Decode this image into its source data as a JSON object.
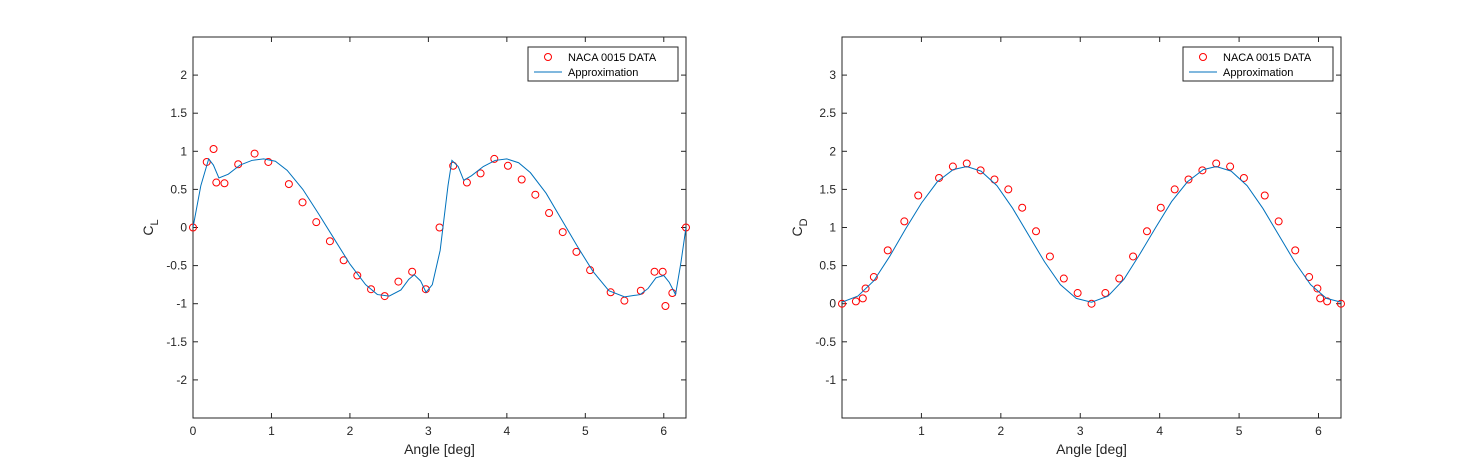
{
  "chart_data": [
    {
      "type": "line",
      "xlabel": "Angle [deg]",
      "ylabel": "C",
      "ylabel_sub": "L",
      "xlim": [
        0,
        6.2832
      ],
      "ylim": [
        -2.5,
        2.5
      ],
      "xticks": [
        0,
        1,
        2,
        3,
        4,
        5,
        6
      ],
      "yticks": [
        -2,
        -1.5,
        -1,
        -0.5,
        0,
        0.5,
        1,
        1.5,
        2
      ],
      "ytick_labels": [
        "-2",
        "-1.5",
        "-1",
        "-0.5",
        "0",
        "0.5",
        "1",
        "1.5",
        "2"
      ],
      "legend_position": "top-right",
      "series": [
        {
          "name": "NACA 0015 DATA",
          "kind": "markers",
          "color": "#ff0000",
          "x": [
            0.0,
            0.175,
            0.262,
            0.297,
            0.401,
            0.576,
            0.785,
            0.96,
            1.222,
            1.396,
            1.571,
            1.745,
            1.92,
            2.094,
            2.269,
            2.443,
            2.618,
            2.793,
            2.967,
            3.142,
            3.316,
            3.491,
            3.665,
            3.84,
            4.014,
            4.189,
            4.363,
            4.538,
            4.712,
            4.887,
            5.061,
            5.323,
            5.498,
            5.707,
            5.882,
            5.986,
            6.021,
            6.109,
            6.283
          ],
          "y": [
            0.0,
            0.86,
            1.03,
            0.59,
            0.58,
            0.83,
            0.97,
            0.86,
            0.57,
            0.33,
            0.07,
            -0.18,
            -0.43,
            -0.63,
            -0.81,
            -0.9,
            -0.71,
            -0.58,
            -0.81,
            0.0,
            0.81,
            0.59,
            0.71,
            0.9,
            0.81,
            0.63,
            0.43,
            0.19,
            -0.06,
            -0.32,
            -0.56,
            -0.85,
            -0.96,
            -0.83,
            -0.58,
            -0.58,
            -1.03,
            -0.86,
            0.0
          ]
        },
        {
          "name": "Approximation",
          "kind": "line",
          "color": "#0072bd",
          "x": [
            0.0,
            0.1,
            0.2,
            0.26,
            0.33,
            0.45,
            0.6,
            0.75,
            0.9,
            1.05,
            1.2,
            1.4,
            1.6,
            1.8,
            2.0,
            2.2,
            2.35,
            2.5,
            2.65,
            2.75,
            2.82,
            2.9,
            2.97,
            3.05,
            3.15,
            3.25,
            3.3,
            3.38,
            3.45,
            3.55,
            3.7,
            3.85,
            4.0,
            4.15,
            4.3,
            4.5,
            4.7,
            4.9,
            5.1,
            5.3,
            5.5,
            5.7,
            5.8,
            5.9,
            6.0,
            6.07,
            6.15,
            6.22,
            6.283
          ],
          "y": [
            0.0,
            0.55,
            0.9,
            0.82,
            0.65,
            0.7,
            0.82,
            0.88,
            0.9,
            0.87,
            0.75,
            0.5,
            0.18,
            -0.15,
            -0.48,
            -0.75,
            -0.88,
            -0.9,
            -0.82,
            -0.68,
            -0.62,
            -0.7,
            -0.85,
            -0.75,
            -0.3,
            0.55,
            0.88,
            0.8,
            0.62,
            0.68,
            0.8,
            0.88,
            0.9,
            0.85,
            0.72,
            0.45,
            0.1,
            -0.25,
            -0.58,
            -0.83,
            -0.91,
            -0.88,
            -0.8,
            -0.66,
            -0.63,
            -0.72,
            -0.88,
            -0.45,
            0.0
          ]
        }
      ]
    },
    {
      "type": "line",
      "xlabel": "Angle [deg]",
      "ylabel": "C",
      "ylabel_sub": "D",
      "xlim": [
        0,
        6.2832
      ],
      "ylim": [
        -1.5,
        3.5
      ],
      "xticks": [
        1,
        2,
        3,
        4,
        5,
        6
      ],
      "yticks": [
        -1,
        -0.5,
        0,
        0.5,
        1,
        1.5,
        2,
        2.5,
        3
      ],
      "ytick_labels": [
        "-1",
        "-0.5",
        "0",
        "0.5",
        "1",
        "1.5",
        "2",
        "2.5",
        "3"
      ],
      "legend_position": "top-right",
      "series": [
        {
          "name": "NACA 0015 DATA",
          "kind": "markers",
          "color": "#ff0000",
          "x": [
            0.0,
            0.175,
            0.262,
            0.297,
            0.401,
            0.576,
            0.785,
            0.96,
            1.222,
            1.396,
            1.571,
            1.745,
            1.92,
            2.094,
            2.269,
            2.443,
            2.618,
            2.793,
            2.967,
            3.142,
            3.316,
            3.491,
            3.665,
            3.84,
            4.014,
            4.189,
            4.363,
            4.538,
            4.712,
            4.887,
            5.061,
            5.323,
            5.498,
            5.707,
            5.882,
            5.986,
            6.021,
            6.109,
            6.283
          ],
          "y": [
            0.0,
            0.03,
            0.07,
            0.2,
            0.35,
            0.7,
            1.08,
            1.42,
            1.65,
            1.8,
            1.84,
            1.75,
            1.63,
            1.5,
            1.26,
            0.95,
            0.62,
            0.33,
            0.14,
            0.0,
            0.14,
            0.33,
            0.62,
            0.95,
            1.26,
            1.5,
            1.63,
            1.75,
            1.84,
            1.8,
            1.65,
            1.42,
            1.08,
            0.7,
            0.35,
            0.2,
            0.07,
            0.03,
            0.0
          ]
        },
        {
          "name": "Approximation",
          "kind": "line",
          "color": "#0072bd",
          "x": [
            0.0,
            0.2,
            0.4,
            0.6,
            0.8,
            1.0,
            1.2,
            1.4,
            1.571,
            1.75,
            1.95,
            2.15,
            2.35,
            2.55,
            2.75,
            2.95,
            3.142,
            3.35,
            3.55,
            3.75,
            3.95,
            4.15,
            4.35,
            4.55,
            4.712,
            4.9,
            5.1,
            5.3,
            5.5,
            5.7,
            5.9,
            6.1,
            6.283
          ],
          "y": [
            0.02,
            0.1,
            0.3,
            0.62,
            0.98,
            1.32,
            1.6,
            1.76,
            1.8,
            1.74,
            1.55,
            1.25,
            0.9,
            0.55,
            0.25,
            0.07,
            0.02,
            0.1,
            0.32,
            0.65,
            1.0,
            1.34,
            1.6,
            1.76,
            1.8,
            1.74,
            1.55,
            1.25,
            0.9,
            0.55,
            0.25,
            0.07,
            0.02
          ]
        }
      ]
    }
  ]
}
